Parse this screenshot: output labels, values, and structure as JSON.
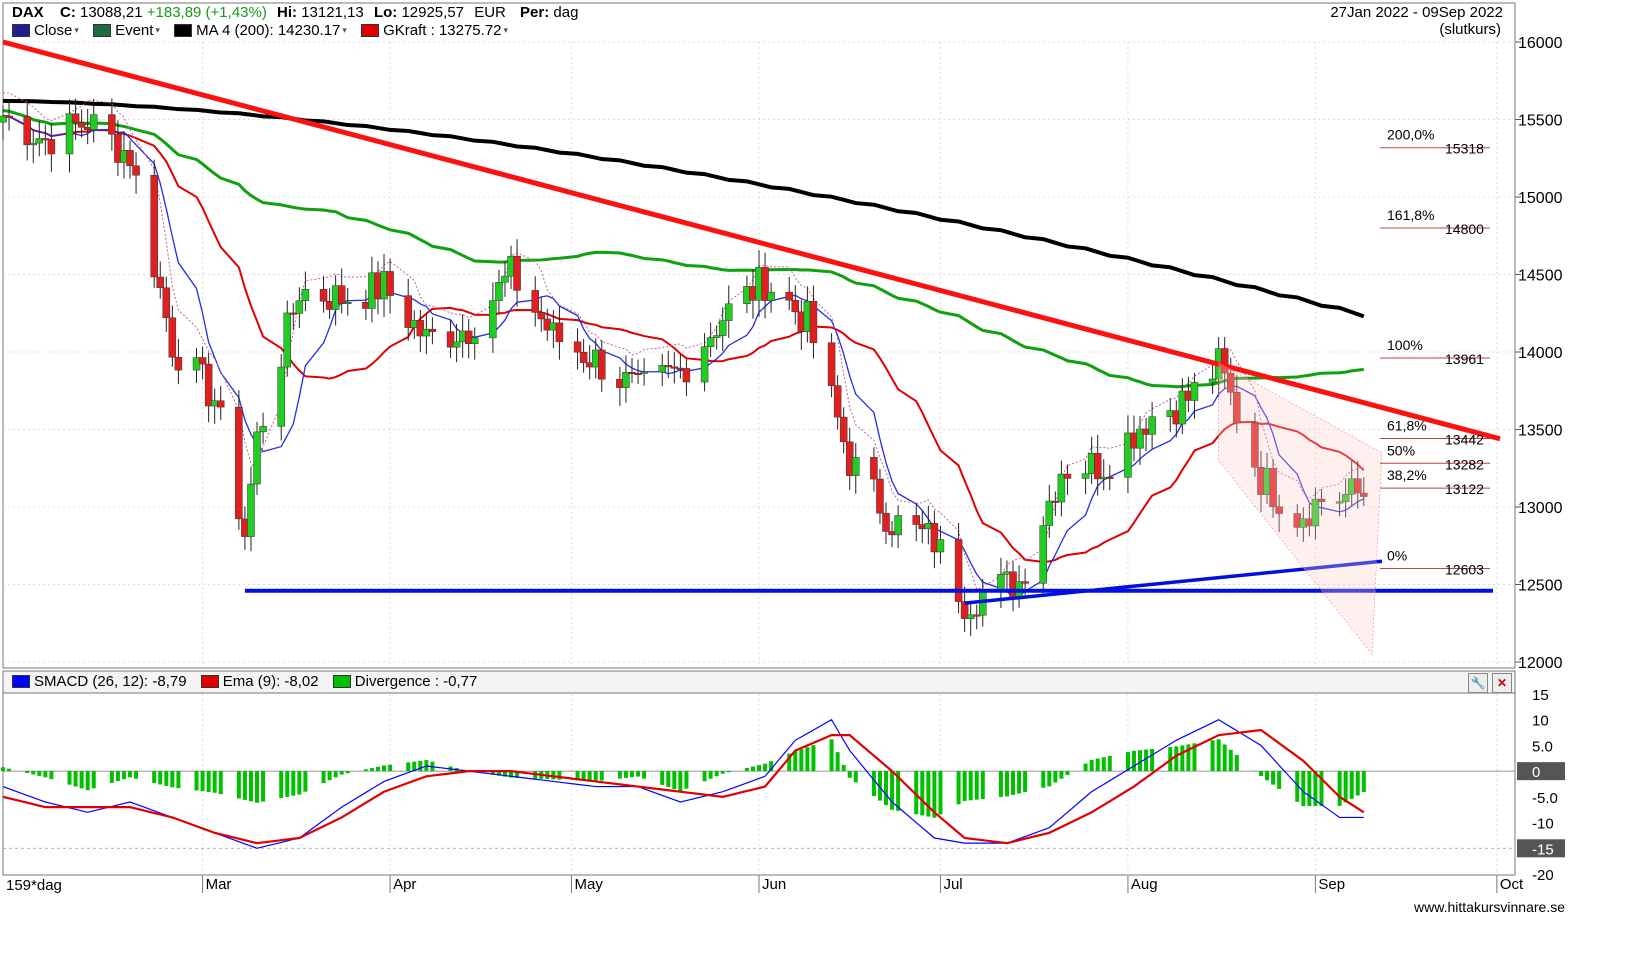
{
  "header": {
    "symbol": "DAX",
    "close_label": "C:",
    "close_value": "13088,21",
    "change": "+183,89 (+1,43%)",
    "hi_label": "Hi:",
    "hi_value": "13121,13",
    "lo_label": "Lo:",
    "lo_value": "12925,57",
    "currency": "EUR",
    "period_label": "Per:",
    "period_value": "dag",
    "date_range": "27Jan 2022 - 09Sep 2022",
    "price_type": "(slutkurs)"
  },
  "legend_main": [
    {
      "label": "Close",
      "color": "#1f1f8f"
    },
    {
      "label": "Event",
      "color": "#1e6b3f"
    },
    {
      "label": "MA 4 (200): 14230.17",
      "color": "#000000"
    },
    {
      "label": "GKraft : 13275.72",
      "color": "#e00000"
    }
  ],
  "legend_macd": [
    {
      "label": "SMACD (26, 12): -8,79",
      "color": "#0000ff"
    },
    {
      "label": "Ema (9): -8,02",
      "color": "#e00000"
    },
    {
      "label": "Divergence : -0,77",
      "color": "#00c000"
    }
  ],
  "footer": {
    "period_count": "159*dag",
    "watermark": "www.hittakursvinnare.se"
  },
  "colors": {
    "up_candle": "#22cc22",
    "down_candle": "#e02020",
    "ma200": "#000000",
    "ma50": "#10a010",
    "ma20": "#e00000",
    "bb_blue": "#2030e0",
    "trend_red": "#ff1010",
    "support_blue": "#0010e0"
  },
  "chart_data": [
    {
      "type": "candlestick",
      "title": "DAX",
      "ylim": [
        12000,
        16000
      ],
      "y_ticks": [
        "16000",
        "15500",
        "15000",
        "14500",
        "14000",
        "13500",
        "13000",
        "12500",
        "12000"
      ],
      "x_ticks": [
        "Mar",
        "Apr",
        "May",
        "Jun",
        "Jul",
        "Aug",
        "Sep",
        "Oct"
      ],
      "x_range": [
        "2022-01-27",
        "2022-10-04"
      ],
      "closes": [
        [
          "2022-01-27",
          15525
        ],
        [
          "2022-02-03",
          15370
        ],
        [
          "2022-02-10",
          15490
        ],
        [
          "2022-02-17",
          15270
        ],
        [
          "2022-02-24",
          14050
        ],
        [
          "2022-03-03",
          13700
        ],
        [
          "2022-03-08",
          12830
        ],
        [
          "2022-03-10",
          13440
        ],
        [
          "2022-03-17",
          14400
        ],
        [
          "2022-03-24",
          14350
        ],
        [
          "2022-03-31",
          14420
        ],
        [
          "2022-04-07",
          14080
        ],
        [
          "2022-04-14",
          14160
        ],
        [
          "2022-04-21",
          14500
        ],
        [
          "2022-04-28",
          14100
        ],
        [
          "2022-05-05",
          13950
        ],
        [
          "2022-05-12",
          13740
        ],
        [
          "2022-05-19",
          13880
        ],
        [
          "2022-05-26",
          14230
        ],
        [
          "2022-06-02",
          14460
        ],
        [
          "2022-06-09",
          14200
        ],
        [
          "2022-06-16",
          13300
        ],
        [
          "2022-06-23",
          12910
        ],
        [
          "2022-06-30",
          12780
        ],
        [
          "2022-07-05",
          12400
        ],
        [
          "2022-07-14",
          12520
        ],
        [
          "2022-07-21",
          13250
        ],
        [
          "2022-07-28",
          13280
        ],
        [
          "2022-08-04",
          13570
        ],
        [
          "2022-08-11",
          13700
        ],
        [
          "2022-08-16",
          13910
        ],
        [
          "2022-08-23",
          13190
        ],
        [
          "2022-08-29",
          12950
        ],
        [
          "2022-09-02",
          13050
        ],
        [
          "2022-09-09",
          13088
        ]
      ],
      "series": [
        {
          "name": "MA 4 (200)",
          "value": "14230.17"
        },
        {
          "name": "GKraft",
          "value": "13275.72"
        }
      ],
      "fibonacci": [
        {
          "label": "200,0%",
          "value": "15318"
        },
        {
          "label": "161,8%",
          "value": "14800"
        },
        {
          "label": "100%",
          "value": "13961"
        },
        {
          "label": "61,8%",
          "value": "13442"
        },
        {
          "label": "50%",
          "value": "13282"
        },
        {
          "label": "38,2%",
          "value": "13122"
        },
        {
          "label": "0%",
          "value": "12603"
        }
      ],
      "support_level": 12460,
      "grid": true
    },
    {
      "type": "macd",
      "ylim": [
        -20,
        15
      ],
      "y_ticks": [
        "15",
        "10",
        "5.0",
        "0",
        "-5.0",
        "-10",
        "-15",
        "-20"
      ],
      "highlight_ticks": [
        "0",
        "-15"
      ],
      "series": [
        {
          "name": "SMACD (26, 12)",
          "value": "-8,79"
        },
        {
          "name": "Ema (9)",
          "value": "-8,02"
        },
        {
          "name": "Divergence",
          "value": "-0,77"
        }
      ],
      "points": [
        [
          "2022-01-27",
          -3,
          -5
        ],
        [
          "2022-02-03",
          -6,
          -7
        ],
        [
          "2022-02-10",
          -8,
          -7
        ],
        [
          "2022-02-17",
          -6,
          -7
        ],
        [
          "2022-02-24",
          -9,
          -9
        ],
        [
          "2022-03-03",
          -12,
          -12
        ],
        [
          "2022-03-10",
          -15,
          -14
        ],
        [
          "2022-03-17",
          -13,
          -13
        ],
        [
          "2022-03-24",
          -7,
          -9
        ],
        [
          "2022-03-31",
          -2,
          -4
        ],
        [
          "2022-04-07",
          1,
          -1
        ],
        [
          "2022-04-14",
          0,
          0
        ],
        [
          "2022-04-21",
          -1,
          0
        ],
        [
          "2022-04-28",
          -2,
          -1
        ],
        [
          "2022-05-05",
          -3,
          -2
        ],
        [
          "2022-05-12",
          -3,
          -3
        ],
        [
          "2022-05-19",
          -6,
          -4
        ],
        [
          "2022-05-26",
          -4,
          -5
        ],
        [
          "2022-06-02",
          -1,
          -3
        ],
        [
          "2022-06-07",
          6,
          4
        ],
        [
          "2022-06-13",
          10,
          7
        ],
        [
          "2022-06-16",
          4,
          7
        ],
        [
          "2022-06-23",
          -6,
          0
        ],
        [
          "2022-06-30",
          -13,
          -8
        ],
        [
          "2022-07-05",
          -14,
          -13
        ],
        [
          "2022-07-12",
          -14,
          -14
        ],
        [
          "2022-07-19",
          -11,
          -12
        ],
        [
          "2022-07-26",
          -4,
          -8
        ],
        [
          "2022-08-02",
          1,
          -3
        ],
        [
          "2022-08-09",
          6,
          3
        ],
        [
          "2022-08-16",
          10,
          7
        ],
        [
          "2022-08-23",
          5,
          8
        ],
        [
          "2022-08-30",
          -4,
          2
        ],
        [
          "2022-09-05",
          -9,
          -5
        ],
        [
          "2022-09-09",
          -9,
          -8
        ]
      ]
    }
  ]
}
